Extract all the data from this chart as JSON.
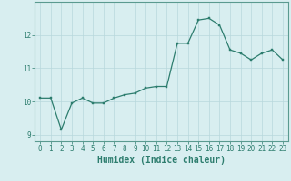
{
  "x": [
    0,
    1,
    2,
    3,
    4,
    5,
    6,
    7,
    8,
    9,
    10,
    11,
    12,
    13,
    14,
    15,
    16,
    17,
    18,
    19,
    20,
    21,
    22,
    23
  ],
  "y": [
    10.1,
    10.1,
    9.15,
    9.95,
    10.1,
    9.95,
    9.95,
    10.1,
    10.2,
    10.25,
    10.4,
    10.45,
    10.45,
    11.75,
    11.75,
    12.45,
    12.5,
    12.3,
    11.55,
    11.45,
    11.25,
    11.45,
    11.55,
    11.25
  ],
  "xlabel": "Humidex (Indice chaleur)",
  "xlim": [
    -0.5,
    23.5
  ],
  "ylim": [
    8.8,
    13.0
  ],
  "yticks": [
    9,
    10,
    11,
    12
  ],
  "xticks": [
    0,
    1,
    2,
    3,
    4,
    5,
    6,
    7,
    8,
    9,
    10,
    11,
    12,
    13,
    14,
    15,
    16,
    17,
    18,
    19,
    20,
    21,
    22,
    23
  ],
  "line_color": "#2d7d6e",
  "marker_color": "#2d7d6e",
  "bg_color": "#d8eef0",
  "grid_color": "#b8d8dc",
  "text_color": "#2d7d6e",
  "spine_color": "#5a9a90",
  "tick_fontsize": 5.5,
  "xlabel_fontsize": 7.0
}
